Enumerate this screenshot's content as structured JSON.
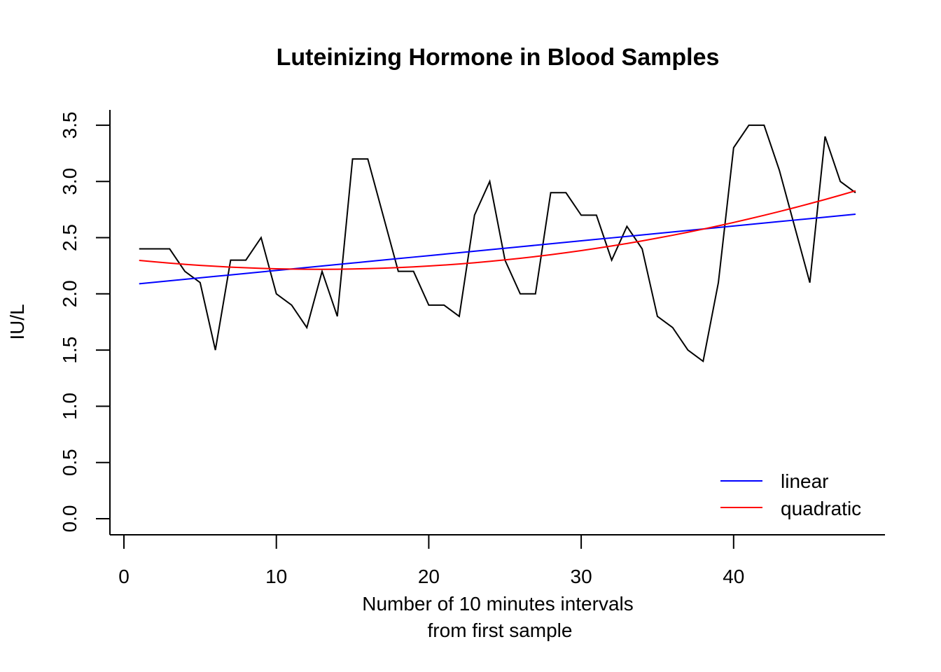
{
  "chart_data": {
    "type": "line",
    "title": "Luteinizing Hormone in Blood Samples",
    "xlabel_line1": "Number of 10 minutes intervals",
    "xlabel_line2": "from first sample",
    "ylabel": "IU/L",
    "xlim": [
      0,
      48
    ],
    "ylim": [
      0,
      3.5
    ],
    "x_ticks": [
      "0",
      "10",
      "20",
      "30",
      "40"
    ],
    "y_ticks": [
      "0.0",
      "0.5",
      "1.0",
      "1.5",
      "2.0",
      "2.5",
      "3.0",
      "3.5"
    ],
    "x": [
      1,
      2,
      3,
      4,
      5,
      6,
      7,
      8,
      9,
      10,
      11,
      12,
      13,
      14,
      15,
      16,
      17,
      18,
      19,
      20,
      21,
      22,
      23,
      24,
      25,
      26,
      27,
      28,
      29,
      30,
      31,
      32,
      33,
      34,
      35,
      36,
      37,
      38,
      39,
      40,
      41,
      42,
      43,
      44,
      45,
      46,
      47,
      48
    ],
    "observed": [
      2.4,
      2.4,
      2.4,
      2.2,
      2.1,
      1.5,
      2.3,
      2.3,
      2.5,
      2.0,
      1.9,
      1.7,
      2.2,
      1.8,
      3.2,
      3.2,
      2.7,
      2.2,
      2.2,
      1.9,
      1.9,
      1.8,
      2.7,
      3.0,
      2.3,
      2.0,
      2.0,
      2.9,
      2.9,
      2.7,
      2.7,
      2.3,
      2.6,
      2.4,
      1.8,
      1.7,
      1.5,
      1.4,
      2.1,
      3.3,
      3.5,
      3.5,
      3.1,
      2.6,
      2.1,
      3.4,
      3.0,
      2.9
    ],
    "series": [
      {
        "name": "linear",
        "color": "#0000ff",
        "intercept": 2.0766,
        "slope": 0.01317
      },
      {
        "name": "quadratic",
        "color": "#ff0000",
        "a": 2.3119,
        "b": -0.01452,
        "c": 0.000565
      }
    ],
    "observed_color": "#000000",
    "legend_position": "bottom-right"
  }
}
